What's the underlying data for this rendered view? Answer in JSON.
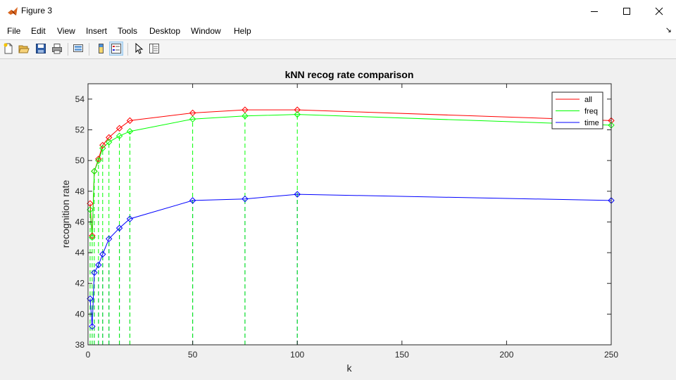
{
  "window": {
    "title": "Figure 3"
  },
  "menu": [
    "File",
    "Edit",
    "View",
    "Insert",
    "Tools",
    "Desktop",
    "Window",
    "Help"
  ],
  "toolbar": {
    "buttons": [
      "new-figure-icon",
      "open-file-icon",
      "save-icon",
      "print-icon",
      "link-plot-icon",
      "colorbar-icon",
      "legend-icon",
      "edit-plot-icon",
      "property-inspector-icon"
    ]
  },
  "colors": {
    "all": "#ff0000",
    "freq": "#00ff00",
    "time": "#0000ff"
  },
  "chart_data": {
    "type": "line",
    "title": "kNN recog rate comparison",
    "xlabel": "k",
    "ylabel": "recognition rate",
    "xlim": [
      0,
      250
    ],
    "ylim": [
      38,
      55
    ],
    "xticks": [
      0,
      50,
      100,
      150,
      200,
      250
    ],
    "yticks": [
      38,
      40,
      42,
      44,
      46,
      48,
      50,
      52,
      54
    ],
    "x": [
      1,
      2,
      3,
      5,
      7,
      10,
      15,
      20,
      50,
      75,
      100,
      250
    ],
    "series": [
      {
        "name": "all",
        "values": [
          47.2,
          45.1,
          49.3,
          50.1,
          51.0,
          51.5,
          52.1,
          52.6,
          53.1,
          53.3,
          53.3,
          52.6
        ]
      },
      {
        "name": "freq",
        "values": [
          46.8,
          45.0,
          49.3,
          50.0,
          50.8,
          51.2,
          51.6,
          51.9,
          52.7,
          52.9,
          53.0,
          52.3
        ]
      },
      {
        "name": "time",
        "values": [
          41.0,
          39.2,
          42.7,
          43.2,
          43.9,
          44.9,
          45.6,
          46.2,
          47.4,
          47.5,
          47.8,
          47.4
        ]
      }
    ],
    "marker": "diamond",
    "stems": "dashed",
    "legend": "top-right",
    "grid": false
  }
}
